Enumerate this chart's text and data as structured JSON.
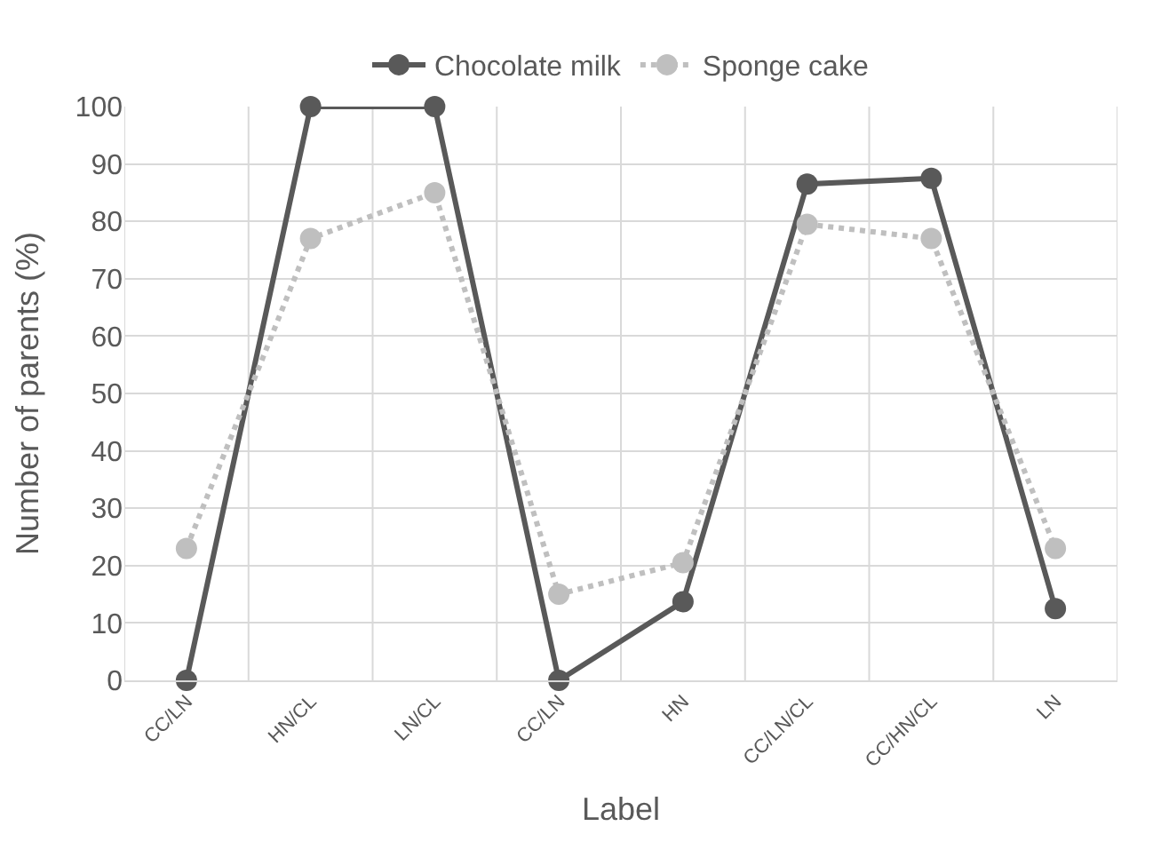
{
  "chart_data": {
    "type": "line",
    "xlabel": "Label",
    "ylabel": "Number of parents (%)",
    "categories": [
      "CC/LN",
      "HN/CL",
      "LN/CL",
      "CC/LN",
      "HN",
      "CC/LN/CL",
      "CC/HN/CL",
      "LN"
    ],
    "series": [
      {
        "name": "Chocolate milk",
        "color": "#595959",
        "line_style": "solid",
        "values": [
          0,
          100,
          100,
          0,
          13.7,
          86.5,
          87.5,
          12.5
        ]
      },
      {
        "name": "Sponge cake",
        "color": "#bfbfbf",
        "line_style": "dotted",
        "values": [
          23,
          77,
          85,
          15,
          20.5,
          79.5,
          77,
          23
        ]
      }
    ],
    "ylim": [
      0,
      100
    ],
    "yticks": [
      0,
      10,
      20,
      30,
      40,
      50,
      60,
      70,
      80,
      90,
      100
    ],
    "grid": true,
    "legend": "top",
    "marker": "circle"
  }
}
